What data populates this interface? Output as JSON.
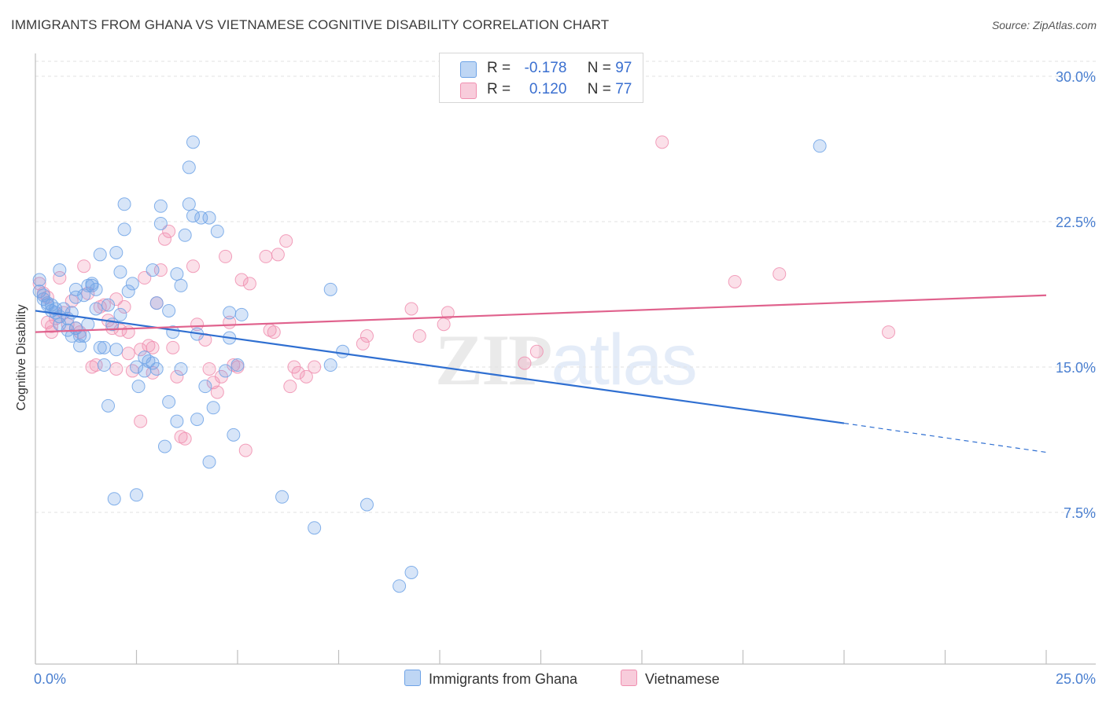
{
  "title": "IMMIGRANTS FROM GHANA VS VIETNAMESE COGNITIVE DISABILITY CORRELATION CHART",
  "source": "Source: ZipAtlas.com",
  "watermark": {
    "zip": "ZIP",
    "atlas": "atlas"
  },
  "legend": {
    "r_label": "R =",
    "n_label": "N =",
    "rows": [
      {
        "r": "-0.178",
        "n": "97",
        "color": "#6ea3e6"
      },
      {
        "r": "0.120",
        "n": "77",
        "color": "#f08fb0"
      }
    ]
  },
  "bottom_legend": [
    {
      "label": "Immigrants from Ghana",
      "color": "#6ea3e6"
    },
    {
      "label": "Vietnamese",
      "color": "#f08fb0"
    }
  ],
  "chart_data": {
    "type": "scatter",
    "title": "IMMIGRANTS FROM GHANA VS VIETNAMESE COGNITIVE DISABILITY CORRELATION CHART",
    "xlabel": "",
    "ylabel": "Cognitive Disability",
    "xlim": [
      0,
      25
    ],
    "ylim": [
      0,
      31.5
    ],
    "x_tick_labels": [
      "0.0%",
      "25.0%"
    ],
    "y_ticks": [
      7.5,
      15.0,
      22.5,
      30.0
    ],
    "y_tick_labels": [
      "7.5%",
      "15.0%",
      "22.5%",
      "30.0%"
    ],
    "grid": true,
    "series": [
      {
        "name": "Immigrants from Ghana",
        "color": "#6ea3e6",
        "trend": {
          "x": [
            0,
            20
          ],
          "y": [
            17.9,
            12.1
          ],
          "dashed_to": [
            25,
            10.6
          ]
        },
        "points": [
          [
            0.1,
            19.5
          ],
          [
            0.1,
            18.9
          ],
          [
            0.2,
            18.7
          ],
          [
            0.2,
            18.5
          ],
          [
            0.3,
            18.2
          ],
          [
            0.3,
            18.3
          ],
          [
            0.4,
            18.2
          ],
          [
            0.4,
            17.9
          ],
          [
            0.5,
            18.0
          ],
          [
            0.5,
            17.8
          ],
          [
            0.6,
            17.6
          ],
          [
            0.6,
            17.2
          ],
          [
            0.6,
            20.0
          ],
          [
            0.7,
            18.0
          ],
          [
            0.8,
            17.5
          ],
          [
            0.8,
            16.9
          ],
          [
            0.9,
            16.6
          ],
          [
            0.9,
            17.8
          ],
          [
            1.0,
            19.0
          ],
          [
            1.0,
            18.6
          ],
          [
            1.0,
            17.0
          ],
          [
            1.1,
            16.6
          ],
          [
            1.1,
            16.1
          ],
          [
            1.2,
            16.6
          ],
          [
            1.2,
            18.7
          ],
          [
            1.3,
            19.2
          ],
          [
            1.3,
            17.2
          ],
          [
            1.4,
            19.2
          ],
          [
            1.4,
            19.3
          ],
          [
            1.5,
            18.0
          ],
          [
            1.5,
            19.0
          ],
          [
            1.6,
            20.8
          ],
          [
            1.6,
            16.0
          ],
          [
            1.7,
            16.0
          ],
          [
            1.7,
            15.1
          ],
          [
            1.8,
            13.0
          ],
          [
            1.8,
            18.2
          ],
          [
            1.9,
            17.2
          ],
          [
            1.95,
            8.2
          ],
          [
            2.0,
            20.9
          ],
          [
            2.0,
            15.9
          ],
          [
            2.1,
            17.7
          ],
          [
            2.1,
            19.9
          ],
          [
            2.2,
            23.4
          ],
          [
            2.2,
            22.1
          ],
          [
            2.3,
            18.9
          ],
          [
            2.4,
            19.3
          ],
          [
            2.5,
            15.0
          ],
          [
            2.5,
            8.4
          ],
          [
            2.55,
            14.0
          ],
          [
            2.7,
            14.8
          ],
          [
            2.7,
            15.5
          ],
          [
            2.8,
            15.3
          ],
          [
            2.9,
            15.2
          ],
          [
            2.9,
            20.0
          ],
          [
            3.0,
            14.9
          ],
          [
            3.0,
            18.3
          ],
          [
            3.1,
            23.3
          ],
          [
            3.1,
            22.4
          ],
          [
            3.2,
            10.9
          ],
          [
            3.3,
            17.9
          ],
          [
            3.3,
            13.2
          ],
          [
            3.4,
            16.8
          ],
          [
            3.5,
            19.8
          ],
          [
            3.5,
            12.2
          ],
          [
            3.6,
            19.2
          ],
          [
            3.6,
            14.9
          ],
          [
            3.7,
            21.8
          ],
          [
            3.8,
            23.4
          ],
          [
            3.8,
            25.3
          ],
          [
            3.9,
            22.8
          ],
          [
            3.9,
            26.6
          ],
          [
            4.0,
            16.7
          ],
          [
            4.0,
            12.3
          ],
          [
            4.1,
            22.7
          ],
          [
            4.2,
            14.0
          ],
          [
            4.3,
            22.7
          ],
          [
            4.3,
            10.1
          ],
          [
            4.4,
            12.9
          ],
          [
            4.5,
            22.0
          ],
          [
            4.7,
            14.8
          ],
          [
            4.8,
            17.8
          ],
          [
            4.8,
            16.5
          ],
          [
            4.9,
            11.5
          ],
          [
            5.0,
            15.1
          ],
          [
            5.1,
            17.7
          ],
          [
            6.1,
            8.3
          ],
          [
            6.9,
            6.7
          ],
          [
            7.3,
            19.0
          ],
          [
            7.3,
            15.1
          ],
          [
            7.6,
            15.8
          ],
          [
            8.2,
            7.9
          ],
          [
            9.0,
            3.7
          ],
          [
            9.3,
            4.4
          ],
          [
            19.4,
            26.4
          ]
        ]
      },
      {
        "name": "Vietnamese",
        "color": "#f08fb0",
        "trend": {
          "x": [
            0,
            25
          ],
          "y": [
            16.8,
            18.7
          ]
        },
        "points": [
          [
            0.1,
            19.3
          ],
          [
            0.2,
            18.8
          ],
          [
            0.3,
            18.6
          ],
          [
            0.3,
            17.3
          ],
          [
            0.4,
            16.8
          ],
          [
            0.4,
            17.1
          ],
          [
            0.5,
            17.5
          ],
          [
            0.6,
            19.6
          ],
          [
            0.7,
            17.8
          ],
          [
            0.8,
            17.2
          ],
          [
            0.9,
            18.4
          ],
          [
            1.0,
            17.0
          ],
          [
            1.1,
            16.8
          ],
          [
            1.2,
            20.2
          ],
          [
            1.3,
            18.8
          ],
          [
            1.4,
            15.0
          ],
          [
            1.5,
            15.1
          ],
          [
            1.6,
            18.1
          ],
          [
            1.7,
            18.2
          ],
          [
            1.8,
            17.4
          ],
          [
            1.9,
            17.0
          ],
          [
            2.0,
            18.5
          ],
          [
            2.0,
            14.9
          ],
          [
            2.1,
            16.9
          ],
          [
            2.2,
            18.1
          ],
          [
            2.3,
            15.7
          ],
          [
            2.3,
            16.8
          ],
          [
            2.4,
            14.8
          ],
          [
            2.6,
            15.9
          ],
          [
            2.6,
            12.2
          ],
          [
            2.7,
            19.6
          ],
          [
            2.8,
            16.1
          ],
          [
            2.9,
            16.0
          ],
          [
            2.9,
            14.7
          ],
          [
            3.0,
            18.3
          ],
          [
            3.1,
            20.0
          ],
          [
            3.2,
            21.6
          ],
          [
            3.3,
            22.0
          ],
          [
            3.4,
            16.0
          ],
          [
            3.5,
            14.5
          ],
          [
            3.6,
            11.4
          ],
          [
            3.7,
            11.3
          ],
          [
            3.9,
            20.2
          ],
          [
            4.0,
            17.2
          ],
          [
            4.2,
            16.4
          ],
          [
            4.3,
            14.9
          ],
          [
            4.4,
            14.2
          ],
          [
            4.5,
            13.7
          ],
          [
            4.6,
            14.5
          ],
          [
            4.7,
            20.7
          ],
          [
            4.8,
            17.3
          ],
          [
            4.9,
            15.1
          ],
          [
            5.0,
            15.0
          ],
          [
            5.1,
            19.5
          ],
          [
            5.2,
            10.7
          ],
          [
            5.3,
            19.3
          ],
          [
            5.7,
            20.7
          ],
          [
            5.8,
            16.9
          ],
          [
            5.9,
            16.8
          ],
          [
            6.0,
            20.8
          ],
          [
            6.2,
            21.5
          ],
          [
            6.3,
            14.0
          ],
          [
            6.4,
            15.0
          ],
          [
            6.5,
            14.7
          ],
          [
            6.7,
            14.5
          ],
          [
            6.9,
            15.0
          ],
          [
            8.1,
            16.2
          ],
          [
            8.2,
            16.6
          ],
          [
            9.3,
            18.0
          ],
          [
            9.5,
            16.6
          ],
          [
            10.1,
            17.2
          ],
          [
            10.2,
            17.8
          ],
          [
            12.1,
            15.2
          ],
          [
            12.4,
            15.8
          ],
          [
            15.5,
            26.6
          ],
          [
            17.3,
            19.4
          ],
          [
            18.4,
            19.8
          ],
          [
            21.1,
            16.8
          ]
        ]
      }
    ]
  }
}
